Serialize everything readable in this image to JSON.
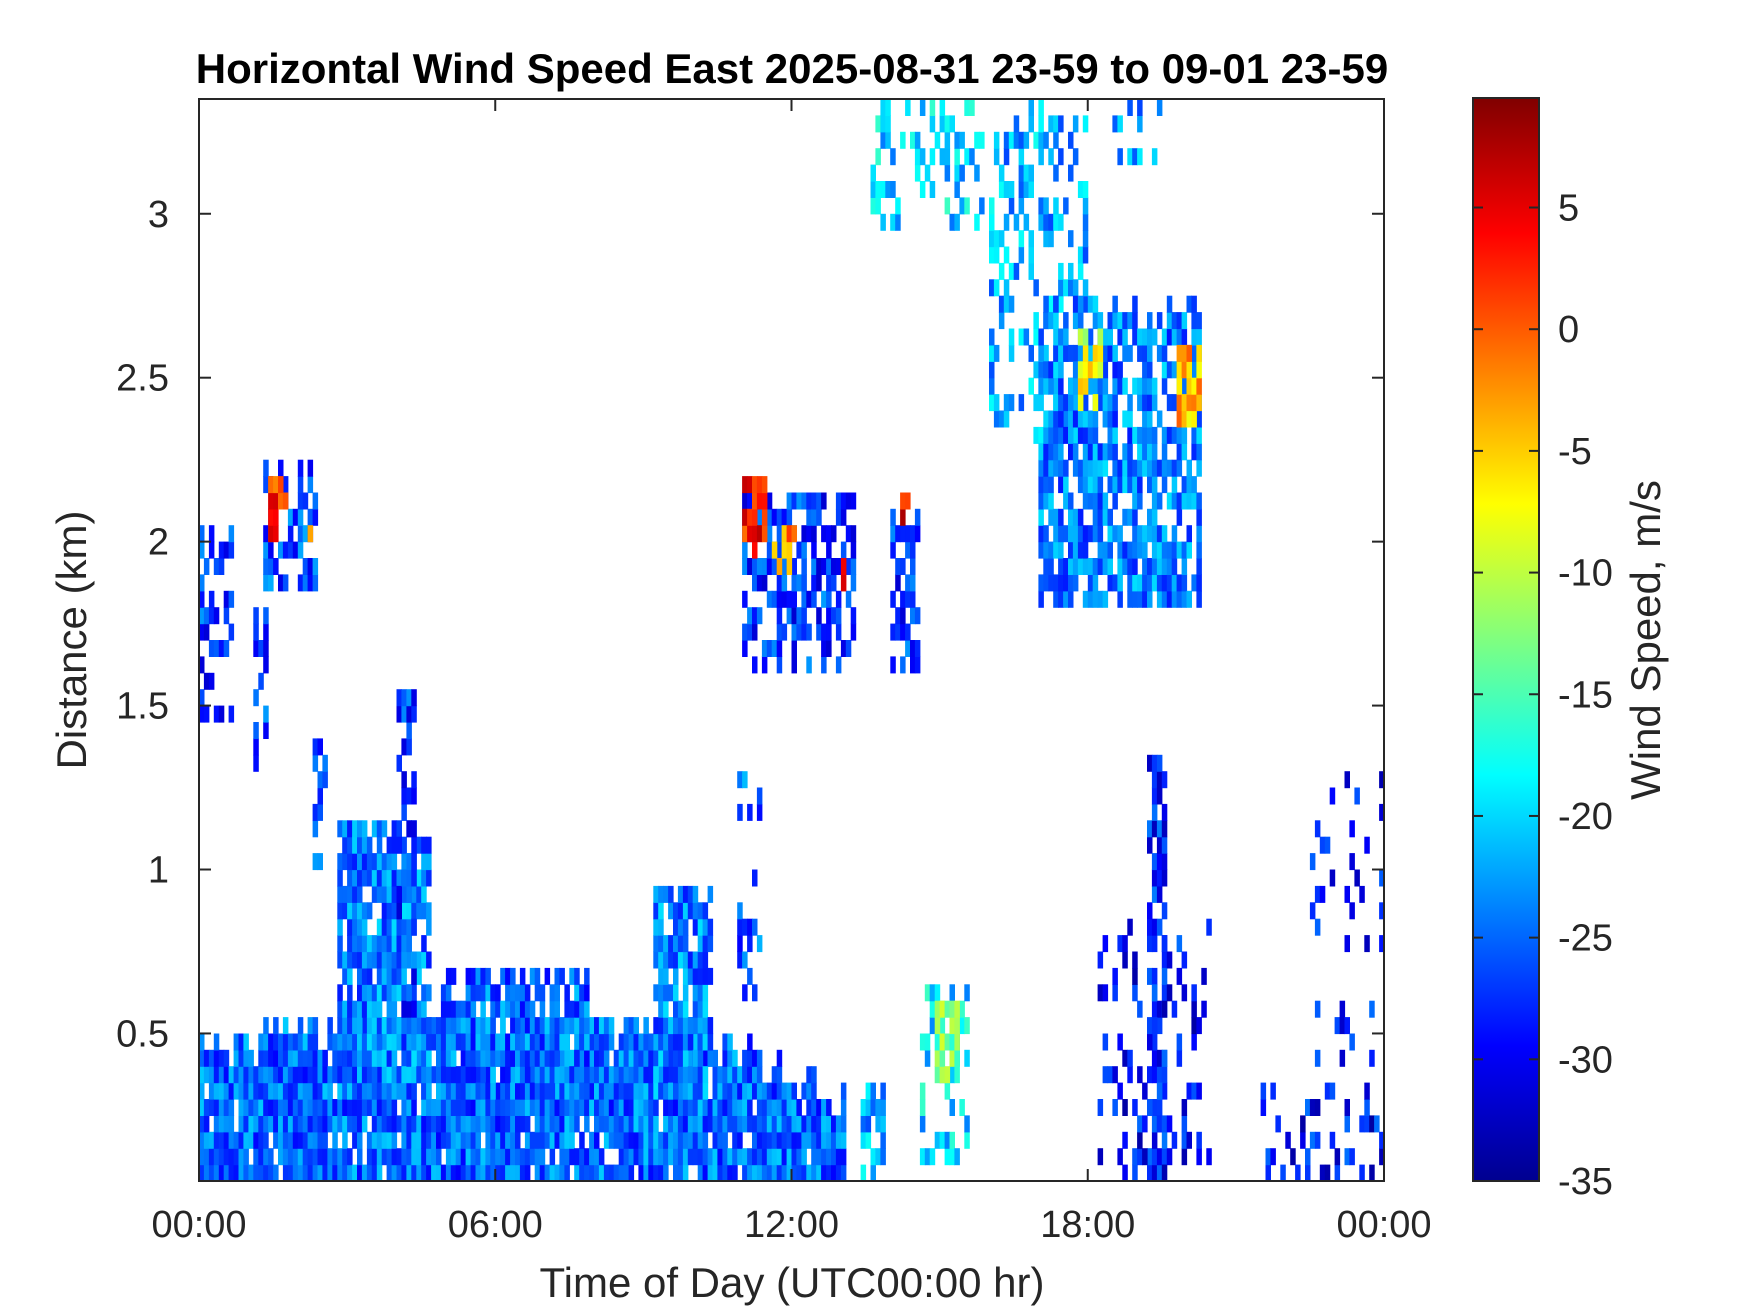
{
  "chart_data": {
    "type": "heatmap",
    "title": "Horizontal Wind Speed East 2025-08-31 23-59 to 09-01 23-59",
    "xlabel": "Time of Day (UTC00:00 hr)",
    "ylabel": "Distance (km)",
    "colorbar_label": "Wind Speed, m/s",
    "colormap": "jet",
    "xlim": [
      0,
      24
    ],
    "ylim": [
      0.05,
      3.35
    ],
    "clim": [
      -35,
      9.5
    ],
    "x_ticks": [
      {
        "value": 0,
        "label": "00:00"
      },
      {
        "value": 6,
        "label": "06:00"
      },
      {
        "value": 12,
        "label": "12:00"
      },
      {
        "value": 18,
        "label": "18:00"
      },
      {
        "value": 24,
        "label": "00:00"
      }
    ],
    "y_ticks": [
      {
        "value": 0.5,
        "label": "0.5"
      },
      {
        "value": 1,
        "label": "1"
      },
      {
        "value": 1.5,
        "label": "1.5"
      },
      {
        "value": 2,
        "label": "2"
      },
      {
        "value": 2.5,
        "label": "2.5"
      },
      {
        "value": 3,
        "label": "3"
      }
    ],
    "colorbar_ticks": [
      {
        "value": 5,
        "label": "5"
      },
      {
        "value": 0,
        "label": "0"
      },
      {
        "value": -5,
        "label": "-5"
      },
      {
        "value": -10,
        "label": "-10"
      },
      {
        "value": -15,
        "label": "-15"
      },
      {
        "value": -20,
        "label": "-20"
      },
      {
        "value": -25,
        "label": "-25"
      },
      {
        "value": -30,
        "label": "-30"
      },
      {
        "value": -35,
        "label": "-35"
      }
    ],
    "regions": [
      {
        "x": [
          0,
          13.0
        ],
        "y": [
          0.05,
          0.5
        ],
        "v": -25,
        "density": 0.93,
        "top_x": [
          0,
          3,
          6,
          9,
          12,
          13
        ],
        "top_y": [
          0.45,
          0.5,
          0.55,
          0.55,
          0.35,
          0.3
        ]
      },
      {
        "x": [
          2.8,
          4.6
        ],
        "y": [
          0.3,
          1.15
        ],
        "v": -24,
        "density": 0.85
      },
      {
        "x": [
          4.9,
          7.8
        ],
        "y": [
          0.3,
          0.7
        ],
        "v": -25,
        "density": 0.8
      },
      {
        "x": [
          9.2,
          10.3
        ],
        "y": [
          0.3,
          0.95
        ],
        "v": -24,
        "density": 0.75
      },
      {
        "x": [
          0,
          0.7
        ],
        "y": [
          1.45,
          2.05
        ],
        "v": -27,
        "density": 0.55
      },
      {
        "x": [
          1.1,
          1.4
        ],
        "y": [
          1.3,
          1.8
        ],
        "v": -26,
        "density": 0.5
      },
      {
        "x": [
          1.3,
          2.4
        ],
        "y": [
          1.85,
          2.2
        ],
        "v": -26,
        "density": 0.55
      },
      {
        "x": [
          11.0,
          13.2
        ],
        "y": [
          1.6,
          2.15
        ],
        "v": -27,
        "density": 0.6
      },
      {
        "x": [
          14.0,
          14.5
        ],
        "y": [
          1.6,
          2.1
        ],
        "v": -27,
        "density": 0.6
      },
      {
        "x": [
          14.6,
          15.5
        ],
        "y": [
          0.1,
          0.65
        ],
        "v": -20,
        "density": 0.35
      },
      {
        "x": [
          13.4,
          13.8
        ],
        "y": [
          0.05,
          0.35
        ],
        "v": -22,
        "density": 0.6
      },
      {
        "x": [
          16.0,
          18.0
        ],
        "y": [
          2.3,
          3.3
        ],
        "v": -22,
        "density": 0.4
      },
      {
        "x": [
          17.0,
          20.3
        ],
        "y": [
          1.8,
          2.7
        ],
        "v": -24,
        "density": 0.7
      },
      {
        "x": [
          13.5,
          15.8
        ],
        "y": [
          2.95,
          3.35
        ],
        "v": -20,
        "density": 0.35
      },
      {
        "x": [
          18.5,
          19.5
        ],
        "y": [
          3.15,
          3.35
        ],
        "v": -22,
        "density": 0.3
      },
      {
        "x": [
          19.2,
          19.6
        ],
        "y": [
          0.05,
          1.35
        ],
        "v": -28,
        "density": 0.6
      },
      {
        "x": [
          18.2,
          20.5
        ],
        "y": [
          0.05,
          0.85
        ],
        "v": -29,
        "density": 0.2
      },
      {
        "x": [
          21.5,
          24.0
        ],
        "y": [
          0.05,
          0.35
        ],
        "v": -29,
        "density": 0.3
      },
      {
        "x": [
          22.5,
          24.0
        ],
        "y": [
          0.35,
          1.3
        ],
        "v": -29,
        "density": 0.12
      },
      {
        "x": [
          4.0,
          4.3
        ],
        "y": [
          0.5,
          1.6
        ],
        "v": -27,
        "density": 0.45
      },
      {
        "x": [
          2.3,
          2.6
        ],
        "y": [
          1.0,
          1.4
        ],
        "v": -27,
        "density": 0.35
      },
      {
        "x": [
          10.9,
          11.3
        ],
        "y": [
          0.5,
          1.3
        ],
        "v": -25,
        "density": 0.3
      }
    ],
    "hotspots": [
      {
        "x": [
          1.4,
          1.8
        ],
        "y": [
          2.0,
          2.15
        ],
        "v": 2
      },
      {
        "x": [
          2.2,
          2.3
        ],
        "y": [
          1.95,
          2.05
        ],
        "v": -3
      },
      {
        "x": [
          11.0,
          11.4
        ],
        "y": [
          1.95,
          2.15
        ],
        "v": 3
      },
      {
        "x": [
          11.6,
          12.0
        ],
        "y": [
          1.9,
          2.05
        ],
        "v": -2
      },
      {
        "x": [
          12.9,
          13.1
        ],
        "y": [
          1.85,
          1.95
        ],
        "v": 2
      },
      {
        "x": [
          14.2,
          14.3
        ],
        "y": [
          2.05,
          2.12
        ],
        "v": 4
      },
      {
        "x": [
          17.8,
          18.3
        ],
        "y": [
          2.4,
          2.6
        ],
        "v": -8
      },
      {
        "x": [
          19.8,
          20.3
        ],
        "y": [
          2.35,
          2.55
        ],
        "v": -4
      },
      {
        "x": [
          14.9,
          15.3
        ],
        "y": [
          0.35,
          0.55
        ],
        "v": -13
      }
    ]
  }
}
